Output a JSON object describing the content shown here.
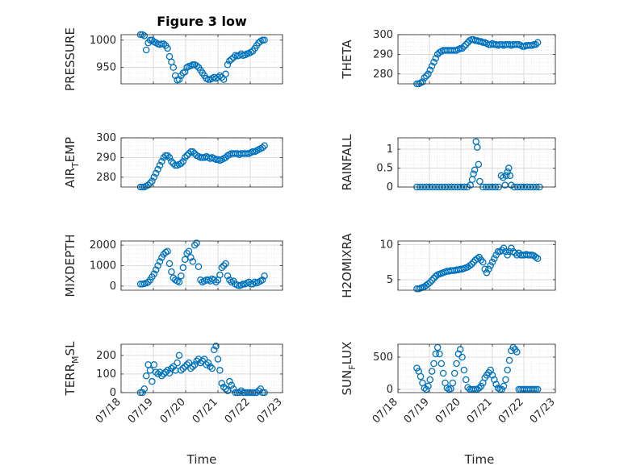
{
  "figure_title": "Figure 3 low",
  "xlabel": "Time",
  "xticks": [
    "07/18",
    "07/19",
    "07/20",
    "07/21",
    "07/22",
    "07/23"
  ],
  "marker_color": "#0072BD",
  "chart_data": [
    {
      "type": "scatter",
      "ylabel_main": "PRESSURE",
      "ylabel_sub": "",
      "ylabel_tail": "",
      "ylim": [
        920,
        1010
      ],
      "yticks": [
        950,
        1000
      ],
      "grid": true,
      "x": [
        0.6,
        0.66,
        0.72,
        0.78,
        0.84,
        0.9,
        0.96,
        1.02,
        1.08,
        1.14,
        1.2,
        1.26,
        1.32,
        1.38,
        1.44,
        1.5,
        1.56,
        1.62,
        1.68,
        1.74,
        1.8,
        1.86,
        1.92,
        1.98,
        2.04,
        2.1,
        2.16,
        2.22,
        2.28,
        2.34,
        2.4,
        2.46,
        2.52,
        2.58,
        2.64,
        2.7,
        2.76,
        2.82,
        2.88,
        2.94,
        3.0,
        3.06,
        3.12,
        3.18,
        3.24,
        3.3,
        3.36,
        3.42,
        3.48,
        3.54,
        3.6,
        3.66,
        3.72,
        3.78,
        3.84,
        3.9,
        3.96,
        4.02,
        4.08,
        4.14,
        4.2,
        4.26,
        4.32,
        4.38,
        4.44
      ],
      "y": [
        1010,
        1010,
        1008,
        982,
        995,
        1000,
        1000,
        997,
        995,
        993,
        992,
        993,
        993,
        990,
        985,
        970,
        960,
        950,
        935,
        927,
        928,
        935,
        940,
        942,
        950,
        952,
        953,
        955,
        955,
        953,
        950,
        945,
        940,
        935,
        930,
        928,
        928,
        930,
        932,
        930,
        932,
        935,
        932,
        928,
        938,
        955,
        962,
        965,
        968,
        972,
        971,
        972,
        975,
        972,
        973,
        975,
        976,
        978,
        980,
        985,
        990,
        995,
        998,
        1000,
        1000
      ]
    },
    {
      "type": "scatter",
      "ylabel_main": "THETA",
      "ylabel_sub": "",
      "ylabel_tail": "",
      "ylim": [
        275,
        300
      ],
      "yticks": [
        280,
        290,
        300
      ],
      "grid": true,
      "x": [
        0.6,
        0.66,
        0.72,
        0.78,
        0.84,
        0.9,
        0.96,
        1.02,
        1.08,
        1.14,
        1.2,
        1.26,
        1.32,
        1.38,
        1.44,
        1.5,
        1.56,
        1.62,
        1.68,
        1.74,
        1.8,
        1.86,
        1.92,
        1.98,
        2.04,
        2.1,
        2.16,
        2.22,
        2.28,
        2.34,
        2.4,
        2.46,
        2.52,
        2.58,
        2.64,
        2.7,
        2.76,
        2.82,
        2.88,
        2.94,
        3.0,
        3.06,
        3.12,
        3.18,
        3.24,
        3.3,
        3.36,
        3.42,
        3.48,
        3.54,
        3.6,
        3.66,
        3.72,
        3.78,
        3.84,
        3.9,
        3.96,
        4.02,
        4.08,
        4.14,
        4.2,
        4.26,
        4.32,
        4.38,
        4.44
      ],
      "y": [
        275,
        275,
        275.5,
        276,
        278,
        279,
        280,
        282,
        284,
        286,
        288,
        290,
        291,
        291.5,
        292,
        292,
        292,
        292,
        292,
        292,
        292,
        292,
        292.5,
        293,
        293,
        294,
        295,
        296,
        297,
        297.5,
        297.5,
        297,
        297,
        296.5,
        296.5,
        296,
        296,
        295.5,
        295,
        295,
        295.5,
        295,
        295,
        294.5,
        295,
        295,
        294.5,
        295,
        295,
        295,
        294.5,
        295,
        295,
        295,
        295,
        294.5,
        294,
        294,
        294.5,
        294.5,
        294.5,
        294.5,
        295,
        295,
        296
      ]
    },
    {
      "type": "scatter",
      "ylabel_main": "AIR",
      "ylabel_sub": "T",
      "ylabel_tail": "EMP",
      "ylim": [
        275,
        300
      ],
      "yticks": [
        280,
        290,
        300
      ],
      "grid": true,
      "x": [
        0.6,
        0.66,
        0.72,
        0.78,
        0.84,
        0.9,
        0.96,
        1.02,
        1.08,
        1.14,
        1.2,
        1.26,
        1.32,
        1.38,
        1.44,
        1.5,
        1.56,
        1.62,
        1.68,
        1.74,
        1.8,
        1.86,
        1.92,
        1.98,
        2.04,
        2.1,
        2.16,
        2.22,
        2.28,
        2.34,
        2.4,
        2.46,
        2.52,
        2.58,
        2.64,
        2.7,
        2.76,
        2.82,
        2.88,
        2.94,
        3.0,
        3.06,
        3.12,
        3.18,
        3.24,
        3.3,
        3.36,
        3.42,
        3.48,
        3.54,
        3.6,
        3.66,
        3.72,
        3.78,
        3.84,
        3.9,
        3.96,
        4.02,
        4.08,
        4.14,
        4.2,
        4.26,
        4.32,
        4.38,
        4.44
      ],
      "y": [
        275,
        275,
        275,
        275.5,
        276,
        277,
        278,
        280,
        282,
        284,
        286,
        288,
        290,
        291,
        291,
        290,
        288,
        287,
        286,
        286,
        286.5,
        287,
        288,
        290,
        291,
        292,
        293,
        293,
        292,
        291,
        290.5,
        290,
        290,
        290,
        290.5,
        290,
        289.5,
        290,
        289.5,
        289,
        289,
        288.5,
        289,
        289.5,
        290,
        291,
        291.5,
        292,
        292,
        292,
        292,
        291.5,
        292,
        292,
        292,
        292,
        292,
        292.5,
        293,
        293,
        293.5,
        294,
        294.5,
        295,
        296
      ]
    },
    {
      "type": "scatter",
      "ylabel_main": "RAINFALL",
      "ylabel_sub": "",
      "ylabel_tail": "",
      "ylim": [
        0,
        1.3
      ],
      "yticks": [
        0,
        0.5,
        1
      ],
      "grid": true,
      "x": [
        0.6,
        0.7,
        0.8,
        0.9,
        1.0,
        1.1,
        1.2,
        1.3,
        1.4,
        1.5,
        1.6,
        1.7,
        1.8,
        1.9,
        2.0,
        2.1,
        2.2,
        2.3,
        2.36,
        2.4,
        2.44,
        2.48,
        2.52,
        2.56,
        2.6,
        2.7,
        2.8,
        2.9,
        3.0,
        3.1,
        3.2,
        3.28,
        3.34,
        3.4,
        3.44,
        3.48,
        3.52,
        3.56,
        3.6,
        3.7,
        3.8,
        3.9,
        4.0,
        4.1,
        4.2,
        4.3,
        4.4,
        4.5
      ],
      "y": [
        0,
        0,
        0,
        0,
        0,
        0,
        0,
        0,
        0,
        0,
        0,
        0,
        0,
        0,
        0,
        0,
        0,
        0.05,
        0.2,
        0.35,
        0.45,
        1.2,
        1.05,
        0.6,
        0.15,
        0,
        0,
        0,
        0,
        0,
        0,
        0.3,
        0.25,
        0.05,
        0.3,
        0.4,
        0.5,
        0.3,
        0.05,
        0,
        0,
        0,
        0,
        0,
        0,
        0,
        0,
        0
      ]
    },
    {
      "type": "scatter",
      "ylabel_main": "MIXDEPTH",
      "ylabel_sub": "",
      "ylabel_tail": "",
      "ylim": [
        -200,
        2200
      ],
      "yticks": [
        0,
        1000,
        2000
      ],
      "grid": true,
      "x": [
        0.6,
        0.66,
        0.72,
        0.78,
        0.84,
        0.9,
        0.96,
        1.02,
        1.08,
        1.14,
        1.2,
        1.26,
        1.32,
        1.38,
        1.44,
        1.5,
        1.56,
        1.62,
        1.68,
        1.74,
        1.8,
        1.86,
        1.92,
        1.98,
        2.04,
        2.1,
        2.16,
        2.22,
        2.28,
        2.34,
        2.4,
        2.46,
        2.52,
        2.58,
        2.64,
        2.7,
        2.76,
        2.82,
        2.88,
        2.94,
        3.0,
        3.06,
        3.12,
        3.18,
        3.24,
        3.3,
        3.36,
        3.42,
        3.48,
        3.54,
        3.6,
        3.66,
        3.72,
        3.78,
        3.84,
        3.9,
        3.96,
        4.02,
        4.08,
        4.14,
        4.2,
        4.26,
        4.32,
        4.38,
        4.44
      ],
      "y": [
        100,
        100,
        120,
        150,
        200,
        300,
        450,
        600,
        800,
        1000,
        1200,
        1400,
        1550,
        1650,
        1700,
        1100,
        700,
        400,
        300,
        250,
        200,
        500,
        900,
        1300,
        1600,
        1700,
        1400,
        1200,
        2000,
        2100,
        950,
        300,
        200,
        250,
        300,
        300,
        250,
        350,
        300,
        200,
        300,
        550,
        900,
        1000,
        1100,
        500,
        300,
        200,
        250,
        100,
        50,
        20,
        50,
        100,
        100,
        150,
        200,
        100,
        100,
        200,
        150,
        200,
        250,
        300,
        500
      ]
    },
    {
      "type": "scatter",
      "ylabel_main": "H2OMIXRA",
      "ylabel_sub": "",
      "ylabel_tail": "",
      "ylim": [
        3.5,
        10.5
      ],
      "yticks": [
        5,
        10
      ],
      "grid": true,
      "x": [
        0.6,
        0.66,
        0.72,
        0.78,
        0.84,
        0.9,
        0.96,
        1.02,
        1.08,
        1.14,
        1.2,
        1.26,
        1.32,
        1.38,
        1.44,
        1.5,
        1.56,
        1.62,
        1.68,
        1.74,
        1.8,
        1.86,
        1.92,
        1.98,
        2.04,
        2.1,
        2.16,
        2.22,
        2.28,
        2.34,
        2.4,
        2.46,
        2.52,
        2.58,
        2.64,
        2.7,
        2.76,
        2.82,
        2.88,
        2.94,
        3.0,
        3.06,
        3.12,
        3.18,
        3.24,
        3.3,
        3.36,
        3.42,
        3.48,
        3.54,
        3.6,
        3.66,
        3.72,
        3.78,
        3.84,
        3.9,
        3.96,
        4.02,
        4.08,
        4.14,
        4.2,
        4.26,
        4.32,
        4.38,
        4.44
      ],
      "y": [
        3.7,
        3.7,
        3.8,
        3.9,
        4.0,
        4.2,
        4.4,
        4.6,
        4.9,
        5.2,
        5.5,
        5.7,
        5.8,
        5.9,
        6.0,
        6.1,
        6.2,
        6.2,
        6.3,
        6.3,
        6.3,
        6.4,
        6.4,
        6.5,
        6.5,
        6.6,
        6.7,
        6.8,
        7.0,
        7.2,
        7.5,
        7.8,
        8.0,
        8.2,
        7.8,
        7.5,
        6.5,
        6.0,
        6.5,
        7.0,
        7.5,
        8.0,
        8.5,
        9.0,
        9.0,
        9.2,
        9.5,
        9.0,
        8.5,
        9.0,
        9.5,
        9.0,
        8.8,
        8.5,
        8.8,
        8.5,
        8.5,
        8.5,
        8.6,
        8.5,
        8.5,
        8.5,
        8.4,
        8.2,
        8.0
      ]
    },
    {
      "type": "scatter",
      "ylabel_main": "TERR",
      "ylabel_sub": "M",
      "ylabel_tail": "SL",
      "ylim": [
        0,
        260
      ],
      "yticks": [
        0,
        100,
        200
      ],
      "grid": true,
      "x": [
        0.6,
        0.66,
        0.72,
        0.78,
        0.84,
        0.9,
        0.96,
        1.02,
        1.08,
        1.14,
        1.2,
        1.26,
        1.32,
        1.38,
        1.44,
        1.5,
        1.56,
        1.62,
        1.68,
        1.74,
        1.8,
        1.86,
        1.92,
        1.98,
        2.04,
        2.1,
        2.16,
        2.22,
        2.28,
        2.34,
        2.4,
        2.46,
        2.52,
        2.58,
        2.64,
        2.7,
        2.76,
        2.82,
        2.88,
        2.94,
        3.0,
        3.06,
        3.12,
        3.18,
        3.24,
        3.3,
        3.36,
        3.42,
        3.48,
        3.54,
        3.6,
        3.66,
        3.72,
        3.78,
        3.84,
        3.9,
        3.96,
        4.02,
        4.08,
        4.14,
        4.2,
        4.26,
        4.32,
        4.38,
        4.44
      ],
      "y": [
        0,
        0,
        20,
        90,
        150,
        120,
        60,
        150,
        110,
        100,
        110,
        90,
        100,
        110,
        120,
        105,
        130,
        140,
        120,
        160,
        200,
        120,
        130,
        140,
        150,
        160,
        130,
        140,
        150,
        170,
        180,
        160,
        170,
        180,
        150,
        160,
        140,
        130,
        230,
        250,
        180,
        120,
        50,
        30,
        20,
        10,
        60,
        40,
        20,
        0,
        0,
        0,
        10,
        0,
        0,
        0,
        0,
        0,
        0,
        0,
        0,
        10,
        20,
        0,
        0
      ]
    },
    {
      "type": "scatter",
      "ylabel_main": "SUN",
      "ylabel_sub": "F",
      "ylabel_tail": "LUX",
      "ylim": [
        -50,
        700
      ],
      "yticks": [
        0,
        500
      ],
      "grid": true,
      "x": [
        0.6,
        0.66,
        0.72,
        0.78,
        0.84,
        0.9,
        0.96,
        1.02,
        1.08,
        1.14,
        1.2,
        1.26,
        1.32,
        1.38,
        1.44,
        1.5,
        1.56,
        1.62,
        1.68,
        1.74,
        1.8,
        1.86,
        1.92,
        1.98,
        2.04,
        2.1,
        2.16,
        2.22,
        2.28,
        2.34,
        2.4,
        2.46,
        2.52,
        2.58,
        2.64,
        2.7,
        2.76,
        2.82,
        2.88,
        2.94,
        3.0,
        3.06,
        3.12,
        3.18,
        3.24,
        3.3,
        3.36,
        3.42,
        3.48,
        3.54,
        3.6,
        3.66,
        3.72,
        3.78,
        3.84,
        3.9,
        3.96,
        4.02,
        4.08,
        4.14,
        4.2,
        4.26,
        4.32,
        4.38,
        4.44
      ],
      "y": [
        330,
        280,
        200,
        100,
        20,
        0,
        50,
        150,
        280,
        400,
        550,
        650,
        550,
        400,
        250,
        100,
        20,
        0,
        10,
        100,
        250,
        400,
        550,
        620,
        500,
        300,
        150,
        30,
        0,
        0,
        0,
        0,
        0,
        20,
        50,
        100,
        180,
        220,
        260,
        300,
        220,
        150,
        80,
        20,
        0,
        0,
        50,
        150,
        300,
        450,
        600,
        650,
        620,
        580,
        0,
        0,
        0,
        0,
        0,
        0,
        0,
        0,
        0,
        0,
        0
      ]
    }
  ]
}
